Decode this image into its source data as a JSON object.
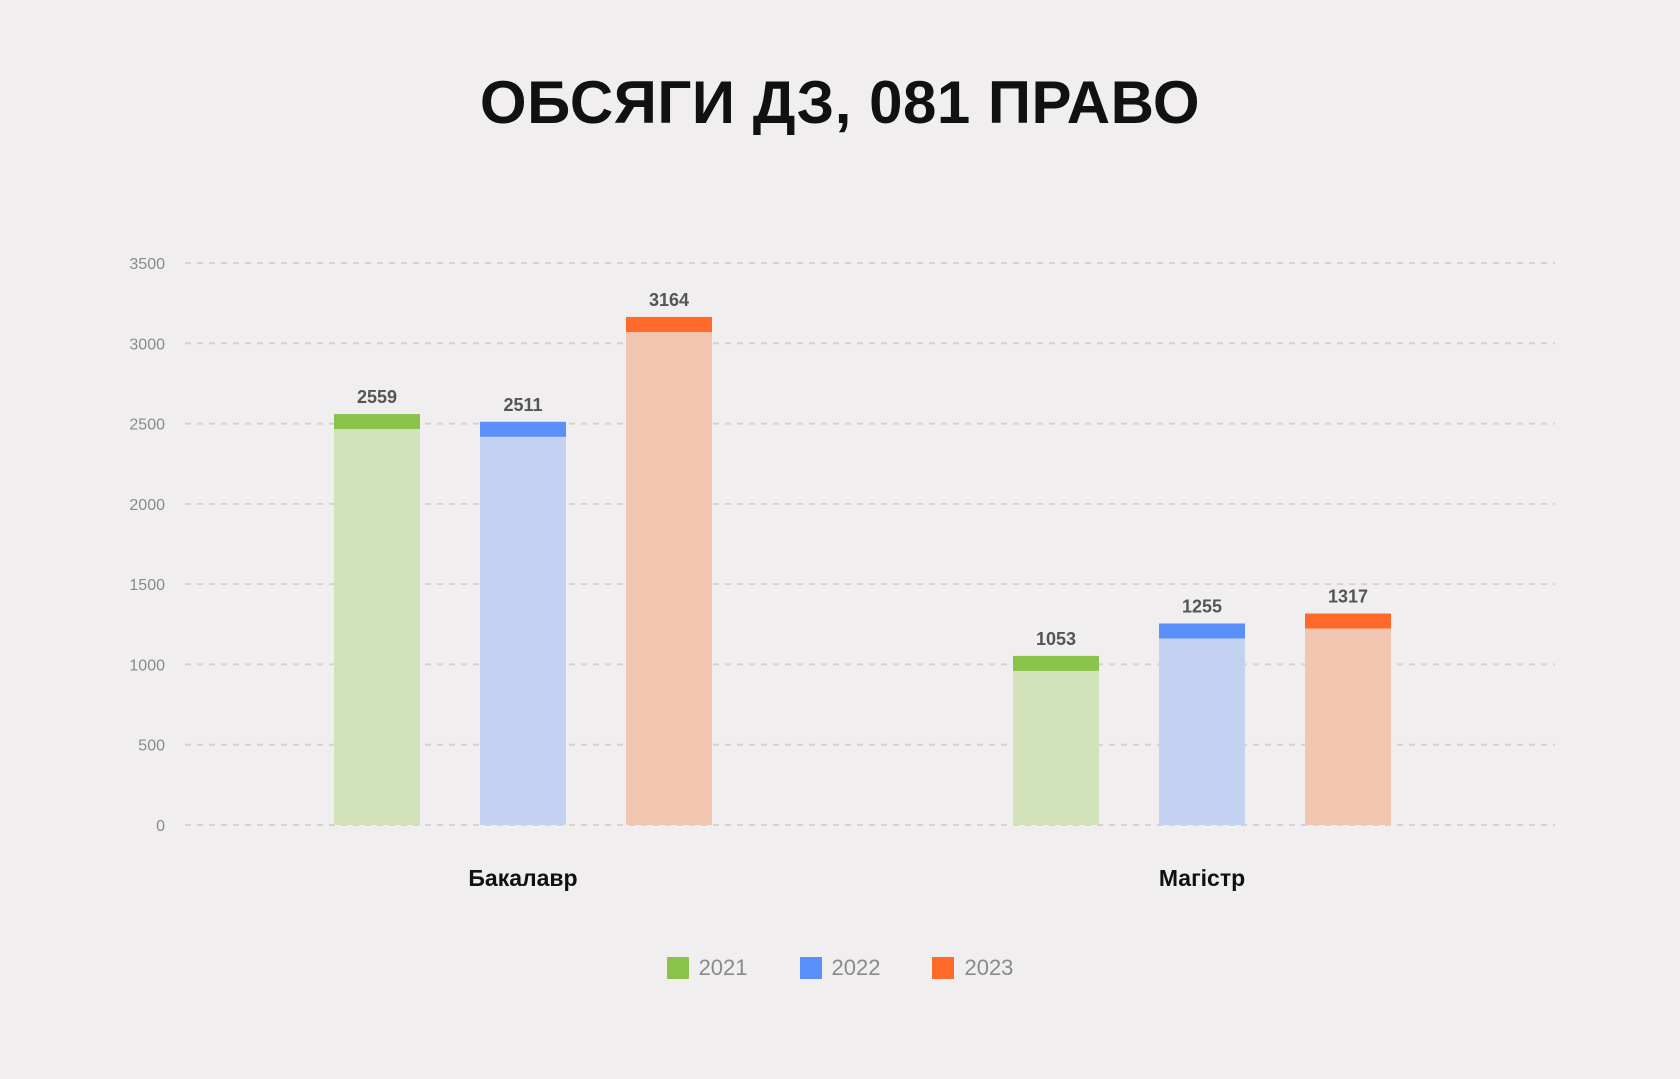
{
  "chart_data": {
    "type": "bar",
    "title": "ОБСЯГИ ДЗ, 081 ПРАВО",
    "categories": [
      "Бакалавр",
      "Магістр"
    ],
    "series": [
      {
        "name": "2021",
        "values": [
          2559,
          1053
        ],
        "color": "#8bc34a",
        "light_color": "#d2e3bc"
      },
      {
        "name": "2022",
        "values": [
          2511,
          1255
        ],
        "color": "#5b8ff9",
        "light_color": "#c4d2f1"
      },
      {
        "name": "2023",
        "values": [
          3164,
          1317
        ],
        "color": "#ff6a2b",
        "light_color": "#f2c5b1"
      }
    ],
    "yticks": [
      0,
      500,
      1000,
      1500,
      2000,
      2500,
      3000,
      3500
    ],
    "ylim": [
      0,
      3500
    ],
    "grid": true,
    "legend_position": "bottom"
  }
}
